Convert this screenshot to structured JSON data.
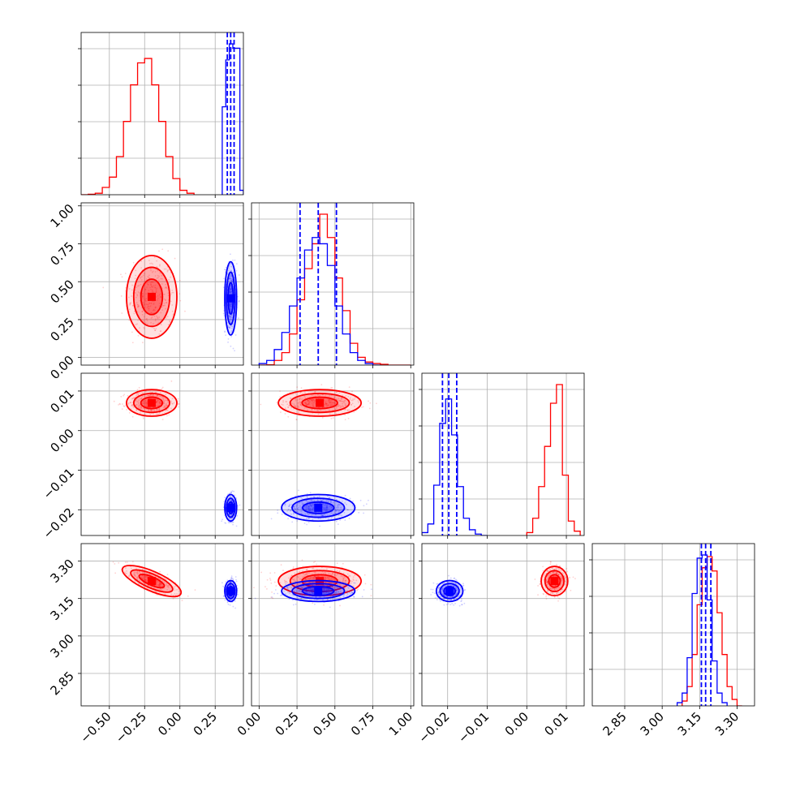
{
  "chart_data": {
    "type": "corner",
    "n_params": 4,
    "grid": true,
    "colors": {
      "red": "#ff0000",
      "blue": "#0000ff",
      "grid": "#b0b0b0"
    },
    "params": [
      {
        "range": [
          -0.7,
          0.45
        ],
        "ticks": [
          -0.5,
          -0.25,
          0.0,
          0.25
        ],
        "tick_labels": [
          "−0.50",
          "−0.25",
          "0.00",
          "0.25"
        ]
      },
      {
        "range": [
          -0.05,
          1.02
        ],
        "ticks": [
          0.0,
          0.25,
          0.5,
          0.75,
          1.0
        ],
        "tick_labels": [
          "0.00",
          "0.25",
          "0.50",
          "0.75",
          "1.00"
        ]
      },
      {
        "range": [
          -0.0265,
          0.0145
        ],
        "ticks": [
          -0.02,
          -0.01,
          0.0,
          0.01
        ],
        "tick_labels": [
          "−0.02",
          "−0.01",
          "0.00",
          "0.01"
        ]
      },
      {
        "range": [
          2.72,
          3.37
        ],
        "ticks": [
          2.85,
          3.0,
          3.15,
          3.3
        ],
        "tick_labels": [
          "2.85",
          "3.00",
          "3.15",
          "3.30"
        ]
      }
    ],
    "series": [
      {
        "color": "red",
        "means": [
          -0.2,
          0.4,
          0.007,
          3.22
        ],
        "stds": [
          0.085,
          0.13,
          0.0016,
          0.028
        ],
        "correlations": [
          [
            0,
            3,
            -0.75
          ]
        ]
      },
      {
        "color": "blue",
        "means": [
          0.36,
          0.39,
          -0.0195,
          3.18
        ],
        "stds": [
          0.02,
          0.115,
          0.0016,
          0.02
        ],
        "correlations": []
      }
    ],
    "quantile_lines": [
      {
        "param": 0,
        "values": [
          0.336,
          0.36,
          0.384
        ]
      },
      {
        "param": 1,
        "values": [
          0.27,
          0.39,
          0.51
        ]
      },
      {
        "param": 2,
        "values": [
          -0.0213,
          -0.0197,
          -0.0177
        ]
      },
      {
        "param": 3,
        "values": [
          3.157,
          3.174,
          3.195
        ]
      }
    ],
    "histograms": [
      {
        "param": 0,
        "red": {
          "bin_edges": [
            -0.7,
            -0.65,
            -0.6,
            -0.55,
            -0.5,
            -0.45,
            -0.4,
            -0.35,
            -0.3,
            -0.25,
            -0.2,
            -0.15,
            -0.1,
            -0.05,
            0.0,
            0.05,
            0.1
          ],
          "counts": [
            0,
            0.003,
            0.01,
            0.05,
            0.12,
            0.26,
            0.5,
            0.75,
            0.9,
            0.93,
            0.75,
            0.5,
            0.26,
            0.11,
            0.03,
            0.01
          ]
        },
        "blue": {
          "bin_edges": [
            0.3,
            0.325,
            0.35,
            0.375,
            0.4,
            0.425,
            0.45
          ],
          "counts": [
            0.6,
            0.92,
            1.03,
            1.0,
            1.0,
            0.03
          ]
        }
      },
      {
        "param": 1,
        "red": {
          "bin_edges": [
            0.0,
            0.05,
            0.1,
            0.15,
            0.2,
            0.25,
            0.3,
            0.35,
            0.4,
            0.45,
            0.5,
            0.55,
            0.6,
            0.65,
            0.7,
            0.75,
            0.8,
            0.85,
            0.9,
            0.95,
            1.0
          ],
          "counts": [
            0,
            0.002,
            0.03,
            0.08,
            0.2,
            0.42,
            0.62,
            0.78,
            0.97,
            0.82,
            0.56,
            0.35,
            0.14,
            0.05,
            0.02,
            0.01,
            0.005,
            0,
            0,
            0
          ]
        },
        "blue": {
          "bin_edges": [
            0.0,
            0.05,
            0.1,
            0.15,
            0.2,
            0.25,
            0.3,
            0.35,
            0.4,
            0.45,
            0.5,
            0.55,
            0.6,
            0.65,
            0.7,
            0.75,
            0.8
          ],
          "counts": [
            0.01,
            0.03,
            0.1,
            0.21,
            0.38,
            0.56,
            0.74,
            0.82,
            0.78,
            0.64,
            0.38,
            0.2,
            0.08,
            0.03,
            0.01,
            0
          ]
        }
      },
      {
        "param": 2,
        "red": {
          "bin_edges": [
            0.0,
            0.0015,
            0.003,
            0.0045,
            0.006,
            0.0075,
            0.009,
            0.0105,
            0.012,
            0.0135
          ],
          "counts": [
            0.02,
            0.12,
            0.34,
            0.62,
            0.92,
            1.05,
            0.42,
            0.1,
            0.03
          ]
        },
        "blue": {
          "bin_edges": [
            -0.0265,
            -0.025,
            -0.0235,
            -0.022,
            -0.0205,
            -0.019,
            -0.0175,
            -0.016,
            -0.0145,
            -0.013,
            -0.0115,
            -0.01
          ],
          "counts": [
            0.02,
            0.08,
            0.35,
            0.78,
            0.95,
            0.7,
            0.34,
            0.12,
            0.04,
            0.01,
            0
          ]
        }
      },
      {
        "param": 3,
        "red": {
          "bin_edges": [
            3.08,
            3.1,
            3.12,
            3.14,
            3.16,
            3.18,
            3.2,
            3.22,
            3.24,
            3.26,
            3.28,
            3.3,
            3.32
          ],
          "counts": [
            0.03,
            0.12,
            0.32,
            0.63,
            0.86,
            0.93,
            0.84,
            0.58,
            0.32,
            0.12,
            0.04,
            0
          ]
        },
        "blue": {
          "bin_edges": [
            3.06,
            3.08,
            3.1,
            3.12,
            3.14,
            3.16,
            3.18,
            3.2,
            3.22,
            3.24,
            3.26
          ],
          "counts": [
            0.02,
            0.08,
            0.3,
            0.7,
            0.92,
            0.94,
            0.66,
            0.28,
            0.08,
            0.02
          ]
        }
      }
    ]
  }
}
